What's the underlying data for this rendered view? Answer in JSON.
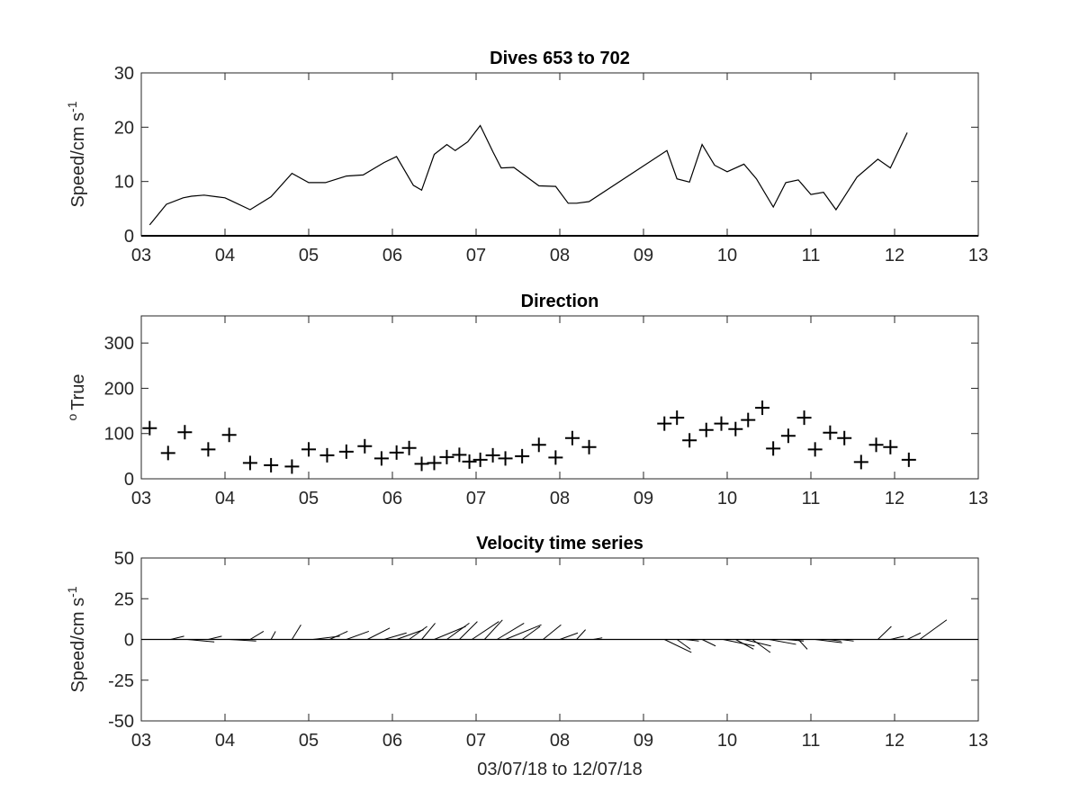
{
  "chart_data": [
    {
      "type": "line",
      "title": "Dives 653 to 702",
      "xlabel": "",
      "ylabel": "Speed/cm s",
      "ylabel_superscript": "-1",
      "xlim": [
        3,
        13
      ],
      "ylim": [
        0,
        30
      ],
      "xticks": [
        "03",
        "04",
        "05",
        "06",
        "07",
        "08",
        "09",
        "10",
        "11",
        "12",
        "13"
      ],
      "yticks": [
        "0",
        "10",
        "20",
        "30"
      ],
      "grid": false,
      "x": [
        3.1,
        3.3,
        3.5,
        3.6,
        3.75,
        3.9,
        4.0,
        4.3,
        4.55,
        4.8,
        5.0,
        5.2,
        5.45,
        5.65,
        5.9,
        6.05,
        6.25,
        6.35,
        6.5,
        6.65,
        6.75,
        6.9,
        7.05,
        7.2,
        7.3,
        7.45,
        7.75,
        7.95,
        8.1,
        8.2,
        8.35,
        9.28,
        9.4,
        9.55,
        9.7,
        9.85,
        10.0,
        10.2,
        10.35,
        10.55,
        10.7,
        10.85,
        11.0,
        11.15,
        11.3,
        11.4,
        11.55,
        11.8,
        11.95,
        12.15
      ],
      "values": [
        2.0,
        5.8,
        7.0,
        7.3,
        7.5,
        7.2,
        7.0,
        4.8,
        7.2,
        11.5,
        9.8,
        9.8,
        11.0,
        11.2,
        13.5,
        14.6,
        9.3,
        8.4,
        15.0,
        16.8,
        15.7,
        17.3,
        20.3,
        15.5,
        12.5,
        12.6,
        9.2,
        9.1,
        6.0,
        6.0,
        6.3,
        15.7,
        10.5,
        9.9,
        16.8,
        13.0,
        11.8,
        13.2,
        10.5,
        5.3,
        9.8,
        10.3,
        7.6,
        8.0,
        4.8,
        7.2,
        10.8,
        14.1,
        12.5,
        19.0
      ],
      "color": "#000000"
    },
    {
      "type": "scatter",
      "title": "Direction",
      "xlabel": "",
      "ylabel": "True",
      "ylabel_prefix_superscript": "o",
      "xlim": [
        3,
        13
      ],
      "ylim": [
        0,
        360
      ],
      "xticks": [
        "03",
        "04",
        "05",
        "06",
        "07",
        "08",
        "09",
        "10",
        "11",
        "12",
        "13"
      ],
      "yticks": [
        "0",
        "100",
        "200",
        "300"
      ],
      "grid": false,
      "marker": "+",
      "x": [
        3.1,
        3.32,
        3.52,
        3.8,
        4.05,
        4.3,
        4.55,
        4.8,
        5.0,
        5.22,
        5.45,
        5.67,
        5.87,
        6.05,
        6.2,
        6.35,
        6.5,
        6.65,
        6.8,
        6.92,
        7.05,
        7.2,
        7.35,
        7.55,
        7.75,
        7.95,
        8.15,
        8.35,
        9.25,
        9.4,
        9.55,
        9.75,
        9.93,
        10.1,
        10.25,
        10.42,
        10.55,
        10.73,
        10.92,
        11.05,
        11.23,
        11.4,
        11.6,
        11.78,
        11.95,
        12.17
      ],
      "values": [
        112,
        57,
        103,
        65,
        97,
        35,
        30,
        27,
        65,
        52,
        60,
        72,
        45,
        58,
        68,
        33,
        35,
        48,
        53,
        38,
        42,
        52,
        45,
        50,
        75,
        47,
        90,
        70,
        122,
        135,
        85,
        108,
        122,
        110,
        130,
        157,
        67,
        95,
        135,
        65,
        102,
        90,
        37,
        75,
        70,
        42
      ],
      "color": "#000000"
    },
    {
      "type": "quiver",
      "title": "Velocity time series",
      "xlabel": "03/07/18 to 12/07/18",
      "ylabel": "Speed/cm s",
      "ylabel_superscript": "-1",
      "xlim": [
        3,
        13
      ],
      "ylim": [
        -50,
        50
      ],
      "xticks": [
        "03",
        "04",
        "05",
        "06",
        "07",
        "08",
        "09",
        "10",
        "11",
        "12",
        "13"
      ],
      "yticks": [
        "-50",
        "-25",
        "0",
        "25",
        "50"
      ],
      "grid": false,
      "baseline": 0,
      "series": [
        {
          "x": [
            3.1,
            3.35,
            3.55,
            3.8,
            4.05,
            4.3,
            4.55,
            4.8,
            5.05,
            5.25,
            5.45,
            5.7,
            5.9,
            6.05,
            6.2,
            6.35,
            6.5,
            6.65,
            6.8,
            6.95,
            7.1,
            7.25,
            7.35,
            7.55,
            7.8,
            8.0,
            8.2,
            8.4,
            9.25,
            9.4,
            9.5,
            9.7,
            9.95,
            10.1,
            10.2,
            10.3,
            10.5,
            10.7,
            10.85,
            11.05,
            11.2,
            11.35,
            11.6,
            11.8,
            11.95,
            12.15,
            12.3
          ],
          "u": [
            0.7,
            0.3,
            0.6,
            0.3,
            0.6,
            0.3,
            0.1,
            0.2,
            0.6,
            0.4,
            0.5,
            0.5,
            0.5,
            0.6,
            0.4,
            0.3,
            0.7,
            0.5,
            0.4,
            0.6,
            0.4,
            0.6,
            0.8,
            0.4,
            0.4,
            0.4,
            0.2,
            0.2,
            0.6,
            0.3,
            0.3,
            0.3,
            0.7,
            0.4,
            0.6,
            0.4,
            0.6,
            0.4,
            0.2,
            0.6,
            0.3,
            0.3,
            0.2,
            0.3,
            0.3,
            0.3,
            0.6
          ],
          "v": [
            0.0,
            2.0,
            -1.5,
            2.0,
            -1.0,
            5.0,
            5.0,
            9.0,
            2.0,
            5.0,
            5.0,
            7.0,
            4.0,
            6.0,
            8.0,
            10.0,
            8.0,
            10.0,
            11.0,
            11.0,
            12.0,
            10.0,
            9.0,
            8.0,
            9.0,
            4.0,
            6.0,
            1.0,
            -8.0,
            -6.0,
            -1.0,
            -4.0,
            -4.0,
            -6.0,
            -4.0,
            -8.0,
            -3.0,
            -1.0,
            -6.0,
            -2.0,
            -1.0,
            -1.0,
            0.0,
            8.0,
            2.0,
            4.0,
            12.0
          ]
        }
      ],
      "color": "#000000"
    }
  ]
}
